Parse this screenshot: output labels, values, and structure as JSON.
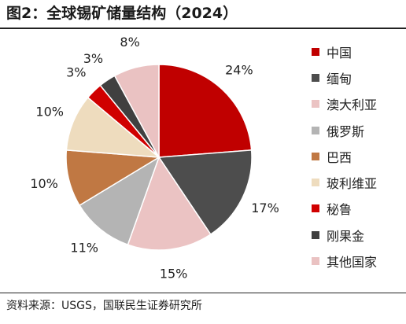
{
  "title": "图2：全球锡矿储量结构（2024）",
  "source": "资料来源：USGS，国联民生证券研究所",
  "colors": {
    "china": "#c00000",
    "myanmar": "#4d4d4d",
    "australia": "#ebc3c3",
    "russia": "#b4b4b4",
    "brazil": "#c07843",
    "bolivia": "#eedcbe",
    "peru": "#d00000",
    "congo": "#404040",
    "others": "#eac2c2"
  },
  "chart_data": {
    "type": "pie",
    "title": "图2：全球锡矿储量结构（2024）",
    "labels": [
      "中国",
      "缅甸",
      "澳大利亚",
      "俄罗斯",
      "巴西",
      "玻利维亚",
      "秘鲁",
      "刚果金",
      "其他国家"
    ],
    "values": [
      24,
      17,
      15,
      11,
      10,
      10,
      3,
      3,
      8
    ],
    "value_labels": [
      "24%",
      "17%",
      "15%",
      "11%",
      "10%",
      "10%",
      "3%",
      "3%",
      "8%"
    ],
    "start_angle_deg": 0,
    "direction": "clockwise",
    "legend_position": "right"
  }
}
